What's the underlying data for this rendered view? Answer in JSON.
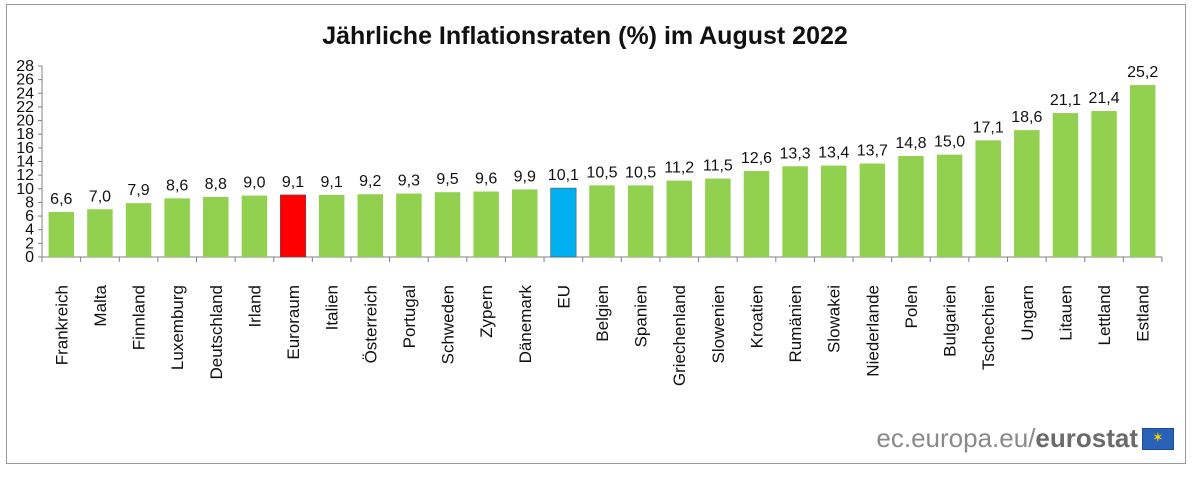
{
  "chart_data": {
    "type": "bar",
    "title": "Jährliche Inflationsraten (%) im August 2022",
    "categories": [
      "Frankreich",
      "Malta",
      "Finnland",
      "Luxemburg",
      "Deutschland",
      "Irland",
      "Euroraum",
      "Italien",
      "Österreich",
      "Portugal",
      "Schweden",
      "Zypern",
      "Dänemark",
      "EU",
      "Belgien",
      "Spanien",
      "Griechenland",
      "Slowenien",
      "Kroatien",
      "Rumänien",
      "Slowakei",
      "Niederlande",
      "Polen",
      "Bulgarien",
      "Tschechien",
      "Ungarn",
      "Litauen",
      "Lettland",
      "Estland"
    ],
    "values": [
      6.6,
      7.0,
      7.9,
      8.6,
      8.8,
      9.0,
      9.1,
      9.1,
      9.2,
      9.3,
      9.5,
      9.6,
      9.9,
      10.1,
      10.5,
      10.5,
      11.2,
      11.5,
      12.6,
      13.3,
      13.4,
      13.7,
      14.8,
      15.0,
      17.1,
      18.6,
      21.1,
      21.4,
      25.2
    ],
    "value_labels": [
      "6,6",
      "7,0",
      "7,9",
      "8,6",
      "8,8",
      "9,0",
      "9,1",
      "9,1",
      "9,2",
      "9,3",
      "9,5",
      "9,6",
      "9,9",
      "10,1",
      "10,5",
      "10,5",
      "11,2",
      "11,5",
      "12,6",
      "13,3",
      "13,4",
      "13,7",
      "14,8",
      "15,0",
      "17,1",
      "18,6",
      "21,1",
      "21,4",
      "25,2"
    ],
    "ylim": [
      0,
      28
    ],
    "yticks": [
      0,
      2,
      4,
      6,
      8,
      10,
      12,
      14,
      16,
      18,
      20,
      22,
      24,
      26,
      28
    ],
    "grid": false,
    "legend": "none",
    "colors": {
      "default": "#92d050",
      "Euroraum": "#ff0000",
      "EU": "#00b0f0"
    }
  },
  "source": {
    "domain": "ec.europa.eu/",
    "brand": "eurostat"
  }
}
